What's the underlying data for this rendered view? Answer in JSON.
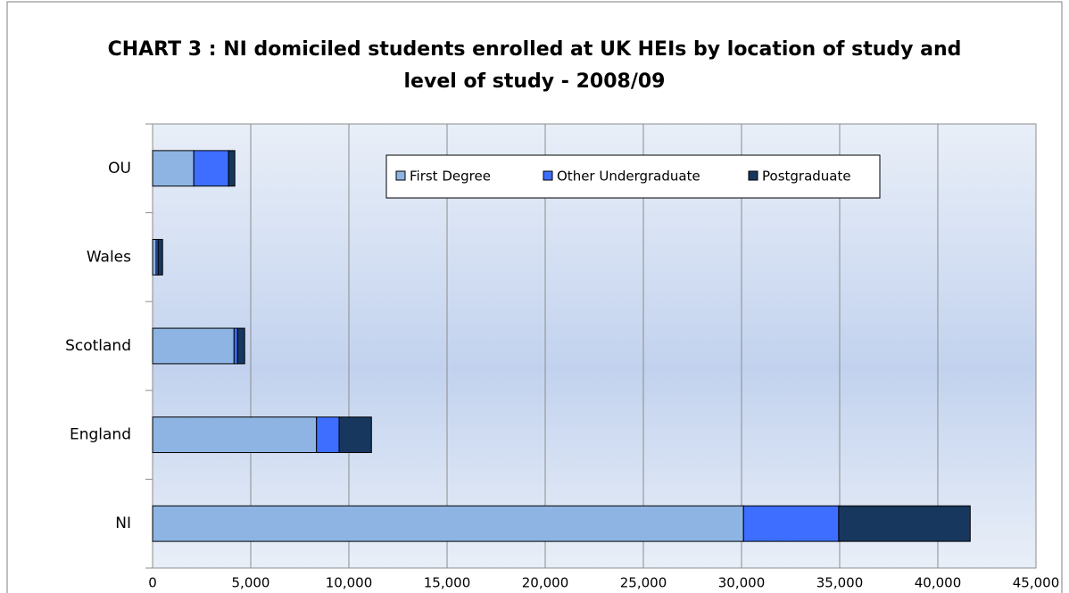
{
  "chart_data": {
    "type": "stacked_barh",
    "title": "CHART 3 : NI domiciled students enrolled at UK HEIs by location of study and level of study - 2008/09",
    "categories": [
      "NI",
      "England",
      "Scotland",
      "Wales",
      "OU"
    ],
    "series": [
      {
        "name": "First Degree",
        "color": "#8db4e2",
        "values": [
          30100,
          8350,
          4150,
          180,
          2100
        ]
      },
      {
        "name": "Other Undergraduate",
        "color": "#3d6eff",
        "values": [
          4850,
          1150,
          180,
          100,
          1770
        ]
      },
      {
        "name": "Postgraduate",
        "color": "#17375e",
        "values": [
          6700,
          1650,
          360,
          230,
          320
        ]
      }
    ],
    "xlim": [
      0,
      45000
    ],
    "xticks": [
      0,
      {
        "value": 5000,
        "label": "5,000"
      },
      {
        "value": 10000,
        "label": "10,000"
      },
      {
        "value": 15000,
        "label": "15,000"
      },
      {
        "value": 20000,
        "label": "20,000"
      },
      {
        "value": 25000,
        "label": "25,000"
      },
      {
        "value": 30000,
        "label": "30,000"
      },
      {
        "value": 35000,
        "label": "35,000"
      },
      {
        "value": 40000,
        "label": "40,000"
      },
      {
        "value": 45000,
        "label": "45,000"
      }
    ],
    "grid": true
  }
}
